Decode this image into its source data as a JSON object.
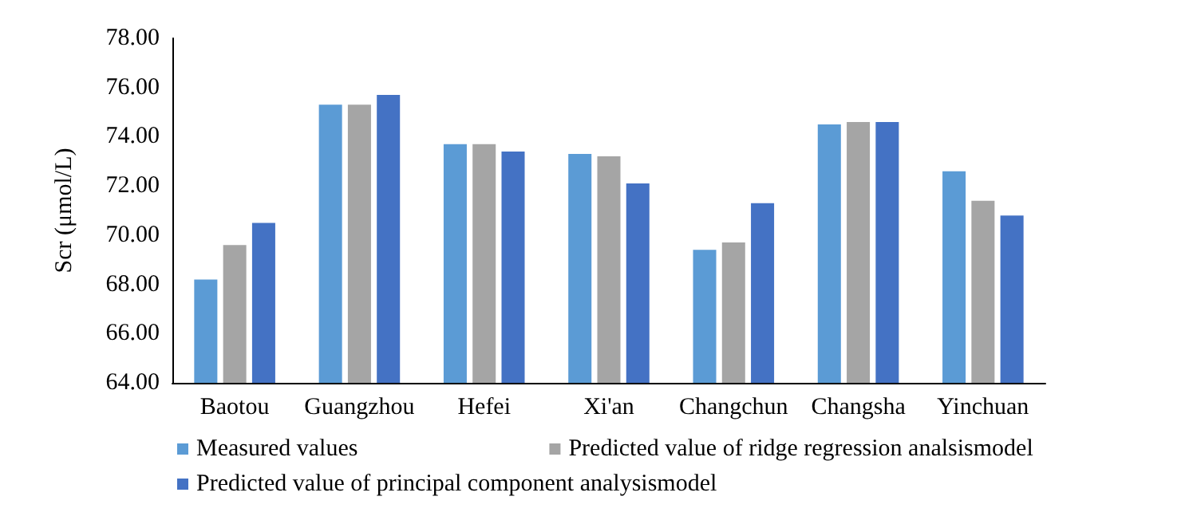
{
  "chart_data": {
    "type": "bar",
    "ylabel": "Scr (μmol/L)",
    "categories": [
      "Baotou",
      "Guangzhou",
      "Hefei",
      "Xi'an",
      "Changchun",
      "Changsha",
      "Yinchuan"
    ],
    "series": [
      {
        "name": "Measured values",
        "color": "#5b9bd5",
        "values": [
          68.2,
          75.3,
          73.7,
          73.3,
          69.4,
          74.5,
          72.6
        ]
      },
      {
        "name": "Predicted value of ridge regression analsismodel",
        "color": "#a5a5a5",
        "values": [
          69.6,
          75.3,
          73.7,
          73.2,
          69.7,
          74.6,
          71.4
        ]
      },
      {
        "name": "Predicted value of principal component analysismodel",
        "color": "#4472c4",
        "values": [
          70.5,
          75.7,
          73.4,
          72.1,
          71.3,
          74.6,
          70.8
        ]
      }
    ],
    "ylim": [
      64,
      78
    ],
    "yticks": [
      {
        "value": 64,
        "label": "64.00"
      },
      {
        "value": 66,
        "label": "66.00"
      },
      {
        "value": 68,
        "label": "68.00"
      },
      {
        "value": 70,
        "label": "70.00"
      },
      {
        "value": 72,
        "label": "72.00"
      },
      {
        "value": 74,
        "label": "74.00"
      },
      {
        "value": 76,
        "label": "76.00"
      },
      {
        "value": 78,
        "label": "78.00"
      }
    ],
    "grid": false,
    "legend": "bottom"
  }
}
